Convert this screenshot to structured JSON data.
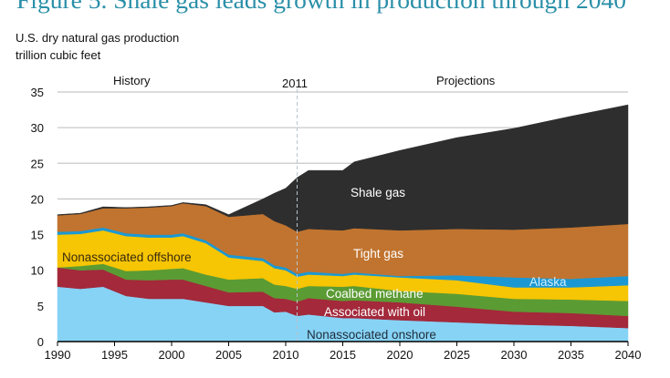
{
  "chart_data": {
    "type": "area",
    "stacked": true,
    "title": "Figure 5.  Shale gas leads growth in production through 2040",
    "subtitle_line1": "U.S. dry natural gas production",
    "subtitle_line2": "trillion cubic feet",
    "xlabel": "",
    "ylabel": "",
    "xlim": [
      1990,
      2040
    ],
    "ylim": [
      0,
      35
    ],
    "grid": true,
    "x_ticks": [
      "1990",
      "1995",
      "2000",
      "2005",
      "2010",
      "2015",
      "2020",
      "2025",
      "2030",
      "2035",
      "2040"
    ],
    "y_ticks": [
      "0",
      "5",
      "10",
      "15",
      "20",
      "25",
      "30",
      "35"
    ],
    "divider_year": 2011,
    "annotations": {
      "history": "History",
      "divider": "2011",
      "projections": "Projections"
    },
    "x": [
      1990,
      1992,
      1994,
      1996,
      1998,
      2000,
      2001,
      2003,
      2005,
      2008,
      2009,
      2010,
      2011,
      2012,
      2015,
      2016,
      2020,
      2025,
      2030,
      2035,
      2040
    ],
    "series": [
      {
        "name": "Nonassociated onshore",
        "color": "#87d3f6",
        "label_color": "#1f2d3a",
        "values": [
          7.7,
          7.4,
          7.7,
          6.4,
          6.0,
          6.0,
          6.0,
          5.5,
          5.0,
          5.0,
          4.1,
          4.2,
          3.6,
          3.8,
          3.3,
          3.3,
          3.0,
          2.7,
          2.4,
          2.2,
          1.9
        ]
      },
      {
        "name": "Associated with oil",
        "color": "#a3293b",
        "label_color": "#ffffff",
        "values": [
          2.7,
          2.6,
          2.4,
          2.3,
          2.6,
          2.7,
          2.7,
          2.3,
          1.9,
          2.0,
          2.0,
          1.8,
          2.0,
          2.3,
          2.4,
          2.5,
          2.5,
          2.2,
          1.8,
          1.8,
          1.7
        ]
      },
      {
        "name": "Coalbed methane",
        "color": "#5b9b33",
        "label_color": "#ffffff",
        "values": [
          0.0,
          0.6,
          0.8,
          1.2,
          1.4,
          1.5,
          1.6,
          1.6,
          1.8,
          1.9,
          1.9,
          1.8,
          1.8,
          1.7,
          2.0,
          2.0,
          1.6,
          1.8,
          1.8,
          1.9,
          2.1
        ]
      },
      {
        "name": "Nonassociated offshore",
        "color": "#f6c503",
        "label_color": "#3a2a10",
        "values": [
          4.6,
          4.5,
          4.7,
          4.9,
          4.6,
          4.4,
          4.5,
          4.4,
          3.1,
          2.4,
          2.3,
          2.2,
          1.7,
          1.6,
          1.5,
          1.6,
          1.9,
          1.9,
          1.6,
          1.7,
          2.2
        ]
      },
      {
        "name": "Alaska",
        "color": "#1b98d3",
        "label_color": "#cfeeff",
        "values": [
          0.4,
          0.4,
          0.4,
          0.4,
          0.4,
          0.4,
          0.4,
          0.4,
          0.4,
          0.4,
          0.4,
          0.4,
          0.4,
          0.4,
          0.3,
          0.3,
          0.2,
          0.7,
          1.4,
          1.2,
          1.3
        ]
      },
      {
        "name": "Tight gas",
        "color": "#c1742f",
        "label_color": "#ffffff",
        "values": [
          2.3,
          2.4,
          2.7,
          3.5,
          3.8,
          4.0,
          4.2,
          4.8,
          5.3,
          6.2,
          6.2,
          5.9,
          5.9,
          6.0,
          6.1,
          6.2,
          6.4,
          6.5,
          6.7,
          7.2,
          7.3
        ]
      },
      {
        "name": "Shale gas",
        "color": "#2e2e2e",
        "label_color": "#ffffff",
        "values": [
          0.1,
          0.1,
          0.2,
          0.1,
          0.1,
          0.1,
          0.1,
          0.2,
          0.3,
          2.1,
          3.9,
          5.2,
          7.6,
          8.2,
          8.4,
          9.3,
          11.2,
          12.8,
          14.2,
          15.6,
          16.7
        ]
      }
    ]
  },
  "colors": {
    "title": "#2a8fa8",
    "grid": "#c8c8c8",
    "axis": "#000000"
  }
}
